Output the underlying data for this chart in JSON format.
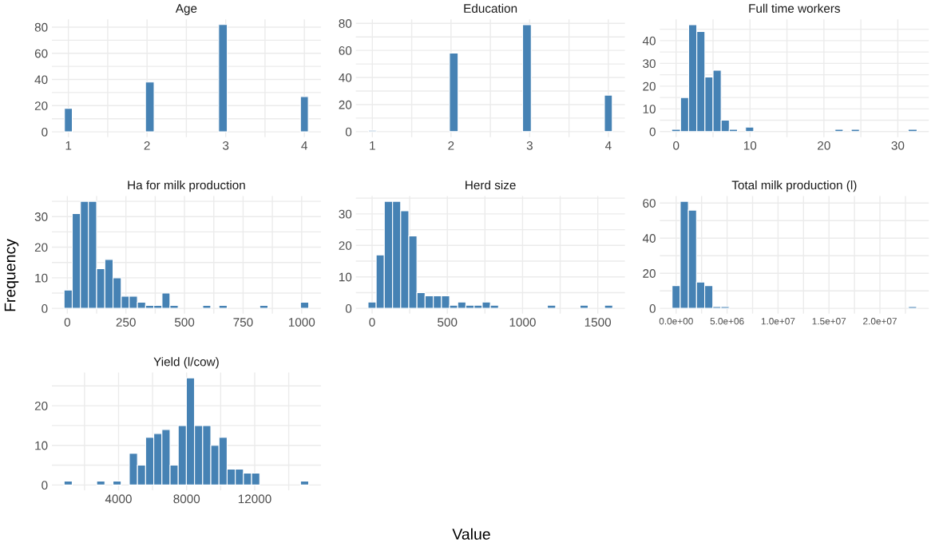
{
  "chart_data": [
    {
      "type": "histogram",
      "title": "Age",
      "color": "#4682b4",
      "grid": true,
      "bins": [
        0.95,
        1.05,
        1.98,
        2.09,
        2.91,
        3.02,
        3.95,
        4.05
      ],
      "values": [
        18,
        0,
        38,
        0,
        82,
        0,
        27
      ],
      "xlim": [
        0.79,
        4.21
      ],
      "ylim": [
        -4,
        86
      ],
      "xticks": [
        1,
        {
          "value": 1.5,
          "label": null
        },
        2,
        {
          "value": 2.5,
          "label": null
        },
        3,
        {
          "value": 3.5,
          "label": null
        },
        4
      ],
      "yticks": [
        0,
        {
          "value": 10,
          "label": null
        },
        20,
        {
          "value": 30,
          "label": null
        },
        40,
        {
          "value": 50,
          "label": null
        },
        60,
        {
          "value": 70,
          "label": null
        },
        80
      ]
    },
    {
      "type": "histogram",
      "title": "Education",
      "color": "#4682b4",
      "grid": true,
      "bins": [
        0.95,
        1.05,
        1.98,
        2.09,
        2.91,
        3.02,
        3.95,
        4.05
      ],
      "values": [
        1,
        0,
        58,
        0,
        79,
        0,
        27
      ],
      "xlim": [
        0.79,
        4.21
      ],
      "ylim": [
        -4,
        83
      ],
      "xticks": [
        1,
        {
          "value": 1.5,
          "label": null
        },
        2,
        {
          "value": 2.5,
          "label": null
        },
        3,
        {
          "value": 3.5,
          "label": null
        },
        4
      ],
      "yticks": [
        0,
        {
          "value": 10,
          "label": null
        },
        20,
        {
          "value": 30,
          "label": null
        },
        40,
        {
          "value": 50,
          "label": null
        },
        60,
        {
          "value": 70,
          "label": null
        },
        80
      ]
    },
    {
      "type": "histogram",
      "title": "Full time workers",
      "color": "#4682b4",
      "grid": true,
      "bins": [
        -0.6,
        0.6,
        1.7,
        2.8,
        3.9,
        5.0,
        6.1,
        7.2,
        8.3,
        9.4,
        10.5,
        21.5,
        22.6,
        23.7,
        24.8,
        31.4,
        32.6
      ],
      "values": [
        1,
        15,
        47,
        44,
        24,
        27,
        5,
        1,
        0,
        2,
        0,
        1,
        0,
        1,
        0,
        1
      ],
      "xlim": [
        -2.2,
        34.2
      ],
      "ylim": [
        -2.4,
        49.4
      ],
      "xticks": [
        0,
        {
          "value": 5,
          "label": null
        },
        10,
        {
          "value": 15,
          "label": null
        },
        20,
        {
          "value": 25,
          "label": null
        },
        30
      ],
      "yticks": [
        0,
        {
          "value": 5,
          "label": null
        },
        10,
        {
          "value": 15,
          "label": null
        },
        20,
        {
          "value": 25,
          "label": null
        },
        30,
        {
          "value": 35,
          "label": null
        },
        40,
        {
          "value": 45,
          "label": null
        }
      ]
    },
    {
      "type": "histogram",
      "title": "Ha for milk production",
      "ylabel": "Frequency",
      "color": "#4682b4",
      "grid": true,
      "bins": [
        -14,
        21,
        56,
        90,
        125,
        160,
        195,
        230,
        264,
        299,
        334,
        369,
        404,
        438,
        473,
        578,
        612,
        647,
        682,
        821,
        856,
        995,
        1030
      ],
      "values": [
        6,
        31,
        35,
        35,
        13,
        16,
        10,
        4,
        4,
        2,
        1,
        1,
        5,
        1,
        0,
        1,
        0,
        1,
        0,
        1,
        0,
        2
      ],
      "xlim": [
        -66,
        1082
      ],
      "ylim": [
        -1.75,
        36.75
      ],
      "xticks": [
        0,
        {
          "value": 125,
          "label": null
        },
        250,
        {
          "value": 375,
          "label": null
        },
        500,
        {
          "value": 625,
          "label": null
        },
        750,
        {
          "value": 875,
          "label": null
        },
        1000
      ],
      "yticks": [
        0,
        {
          "value": 5,
          "label": null
        },
        10,
        {
          "value": 15,
          "label": null
        },
        20,
        {
          "value": 25,
          "label": null
        },
        30,
        {
          "value": 35,
          "label": null
        }
      ]
    },
    {
      "type": "histogram",
      "title": "Herd size",
      "xlabel": "Value",
      "color": "#4682b4",
      "grid": true,
      "bins": [
        -27,
        27,
        81,
        136,
        190,
        244,
        298,
        352,
        407,
        461,
        515,
        569,
        623,
        678,
        732,
        786,
        840,
        1165,
        1220,
        1382,
        1436,
        1545,
        1599
      ],
      "values": [
        2,
        17,
        34,
        34,
        31,
        23,
        5,
        4,
        4,
        4,
        1,
        2,
        1,
        1,
        2,
        1,
        0,
        1,
        0,
        1,
        0,
        1
      ],
      "xlim": [
        -108,
        1680
      ],
      "ylim": [
        -1.7,
        35.7
      ],
      "xticks": [
        0,
        {
          "value": 250,
          "label": null
        },
        500,
        {
          "value": 750,
          "label": null
        },
        1000,
        {
          "value": 1250,
          "label": null
        },
        1500
      ],
      "yticks": [
        0,
        {
          "value": 5,
          "label": null
        },
        10,
        {
          "value": 15,
          "label": null
        },
        20,
        {
          "value": 25,
          "label": null
        },
        30,
        {
          "value": 35,
          "label": null
        }
      ]
    },
    {
      "type": "histogram",
      "title": "Total milk production (l)",
      "color": "#4682b4",
      "grid": true,
      "bins": [
        -400000,
        400000,
        1200000,
        2000000,
        2800000,
        3600000,
        4400000,
        5200000,
        22800000,
        23600000
      ],
      "values": [
        13,
        61,
        56,
        15,
        13,
        1,
        1,
        0,
        1
      ],
      "xlim": [
        -1600000,
        24800000
      ],
      "ylim": [
        -3.05,
        64.05
      ],
      "xticks": [
        {
          "value": 0,
          "label": "0.0e+00"
        },
        {
          "value": 2500000,
          "label": null
        },
        {
          "value": 5000000,
          "label": "5.0e+06"
        },
        {
          "value": 7500000,
          "label": null
        },
        {
          "value": 10000000,
          "label": "1.0e+07"
        },
        {
          "value": 12500000,
          "label": null
        },
        {
          "value": 15000000,
          "label": "1.5e+07"
        },
        {
          "value": 17500000,
          "label": null
        },
        {
          "value": 20000000,
          "label": "2.0e+07"
        },
        {
          "value": 22500000,
          "label": null
        }
      ],
      "yticks": [
        0,
        {
          "value": 10,
          "label": null
        },
        20,
        {
          "value": 30,
          "label": null
        },
        40,
        {
          "value": 50,
          "label": null
        },
        60
      ]
    },
    {
      "type": "histogram",
      "title": "Yield (l/cow)",
      "color": "#4682b4",
      "grid": true,
      "bins": [
        800,
        1279,
        2716,
        3195,
        3674,
        4153,
        4632,
        5111,
        5590,
        6069,
        6548,
        7027,
        7506,
        7985,
        8464,
        8943,
        9422,
        9901,
        10380,
        10859,
        11338,
        11817,
        12296,
        14691,
        15170
      ],
      "values": [
        1,
        0,
        1,
        0,
        1,
        0,
        8,
        5,
        12,
        13,
        14,
        5,
        15,
        27,
        15,
        15,
        10,
        12,
        4,
        4,
        3,
        3,
        0,
        1
      ],
      "xlim": [
        82,
        15888
      ],
      "ylim": [
        -1.35,
        28.35
      ],
      "xticks": [
        {
          "value": 2000,
          "label": null
        },
        4000,
        {
          "value": 6000,
          "label": null
        },
        8000,
        {
          "value": 10000,
          "label": null
        },
        12000,
        {
          "value": 14000,
          "label": null
        }
      ],
      "yticks": [
        0,
        {
          "value": 5,
          "label": null
        },
        10,
        {
          "value": 15,
          "label": null
        },
        20,
        {
          "value": 25,
          "label": null
        }
      ]
    }
  ]
}
